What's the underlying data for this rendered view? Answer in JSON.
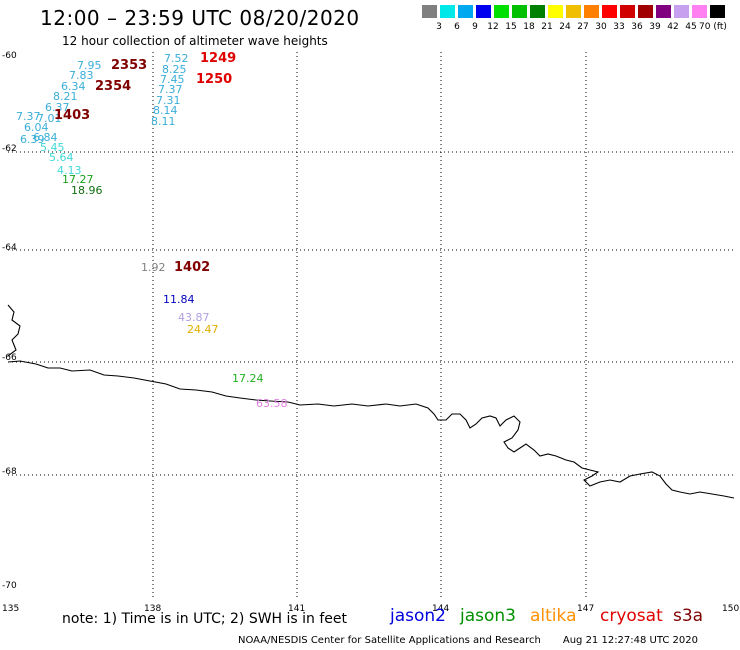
{
  "header": {
    "title": "12:00 – 23:59 UTC 08/20/2020",
    "subtitle": "12 hour collection of altimeter wave heights"
  },
  "legend": {
    "colors": [
      "#808080",
      "#00e8e8",
      "#00a8f0",
      "#0000f0",
      "#00e000",
      "#00c000",
      "#008000",
      "#ffff00",
      "#f0c000",
      "#ff8000",
      "#ff0000",
      "#d00000",
      "#a00000",
      "#800080",
      "#c8a0f0",
      "#ff80f0",
      "#000000"
    ],
    "labels": [
      "3",
      "6",
      "9",
      "12",
      "15",
      "18",
      "21",
      "24",
      "27",
      "30",
      "33",
      "36",
      "39",
      "42",
      "45",
      "70 (ft)"
    ]
  },
  "axes": {
    "lat_ticks": [
      "-60",
      "-62",
      "-64",
      "-66",
      "-68",
      "-70"
    ],
    "lon_ticks": [
      "135",
      "138",
      "141",
      "144",
      "147",
      "150"
    ]
  },
  "observations": [
    {
      "text": "7.95",
      "color": "#3aaed8"
    },
    {
      "text": "7.83",
      "color": "#3aaed8"
    },
    {
      "text": "6.34",
      "color": "#3aaed8"
    },
    {
      "text": "8.21",
      "color": "#3aaed8"
    },
    {
      "text": "6.37",
      "color": "#3aaed8"
    },
    {
      "text": "7.37",
      "color": "#3aaed8"
    },
    {
      "text": "7.01",
      "color": "#3aaed8"
    },
    {
      "text": "6.04",
      "color": "#3aaed8"
    },
    {
      "text": "6.84",
      "color": "#3aaed8"
    },
    {
      "text": "6.39",
      "color": "#3aaed8"
    },
    {
      "text": "5.45",
      "color": "#40d8d8"
    },
    {
      "text": "5.64",
      "color": "#40d8d8"
    },
    {
      "text": "4.13",
      "color": "#40d8d8"
    },
    {
      "text": "17.27",
      "color": "#1aa01a"
    },
    {
      "text": "18.96",
      "color": "#107010"
    },
    {
      "text": "7.52",
      "color": "#3aaed8"
    },
    {
      "text": "8.25",
      "color": "#3aaed8"
    },
    {
      "text": "7.45",
      "color": "#3aaed8"
    },
    {
      "text": "7.37",
      "color": "#3aaed8"
    },
    {
      "text": "7.31",
      "color": "#3aaed8"
    },
    {
      "text": "8.14",
      "color": "#3aaed8"
    },
    {
      "text": "8.11",
      "color": "#3aaed8"
    },
    {
      "text": "1.92",
      "color": "#808080"
    },
    {
      "text": "11.84",
      "color": "#0000c0"
    },
    {
      "text": "43.87",
      "color": "#b0a0e0"
    },
    {
      "text": "24.47",
      "color": "#e0b000"
    },
    {
      "text": "17.24",
      "color": "#20b020"
    },
    {
      "text": "63.58",
      "color": "#e080e0"
    }
  ],
  "pass_times": [
    {
      "text": "2353",
      "color": "#800000"
    },
    {
      "text": "2354",
      "color": "#800000"
    },
    {
      "text": "1403",
      "color": "#800000"
    },
    {
      "text": "1249",
      "color": "#e00000"
    },
    {
      "text": "1250",
      "color": "#e00000"
    },
    {
      "text": "1402",
      "color": "#800000"
    }
  ],
  "footer": {
    "note": "note: 1) Time is in UTC; 2) SWH is in feet",
    "credit": "NOAA/NESDIS Center for Satellite Applications and Research",
    "generated": "Aug 21 12:27:48 UTC 2020",
    "satellites": [
      {
        "name": "jason2",
        "color": "#0000e0"
      },
      {
        "name": "jason3",
        "color": "#009000"
      },
      {
        "name": "altika",
        "color": "#ff9000"
      },
      {
        "name": "cryosat",
        "color": "#e00000"
      },
      {
        "name": "s3a",
        "color": "#800000"
      }
    ]
  }
}
